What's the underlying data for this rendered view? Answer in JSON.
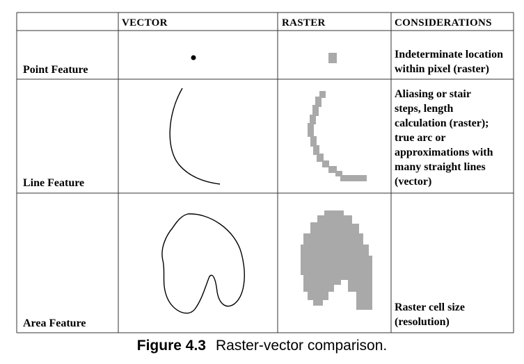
{
  "table": {
    "headers": {
      "corner": "",
      "vector": "VECTOR",
      "raster": "RASTER",
      "considerations": "CONSIDERATIONS"
    },
    "rows": [
      {
        "feature": "Point Feature",
        "considerations": [
          "Indeterminate location",
          "within pixel (raster)"
        ]
      },
      {
        "feature": "Line Feature",
        "considerations": [
          "Aliasing or stair",
          "steps, length",
          "calculation (raster);",
          "true arc or",
          "approximations with",
          "many straight lines",
          "(vector)"
        ]
      },
      {
        "feature": "Area Feature",
        "considerations": [
          "Raster cell size",
          "(resolution)"
        ]
      }
    ]
  },
  "caption": {
    "number": "Figure 4.3",
    "text": "Raster-vector comparison."
  },
  "colors": {
    "raster_fill": "#a9a9a9",
    "line": "#000000",
    "border": "#333333"
  }
}
